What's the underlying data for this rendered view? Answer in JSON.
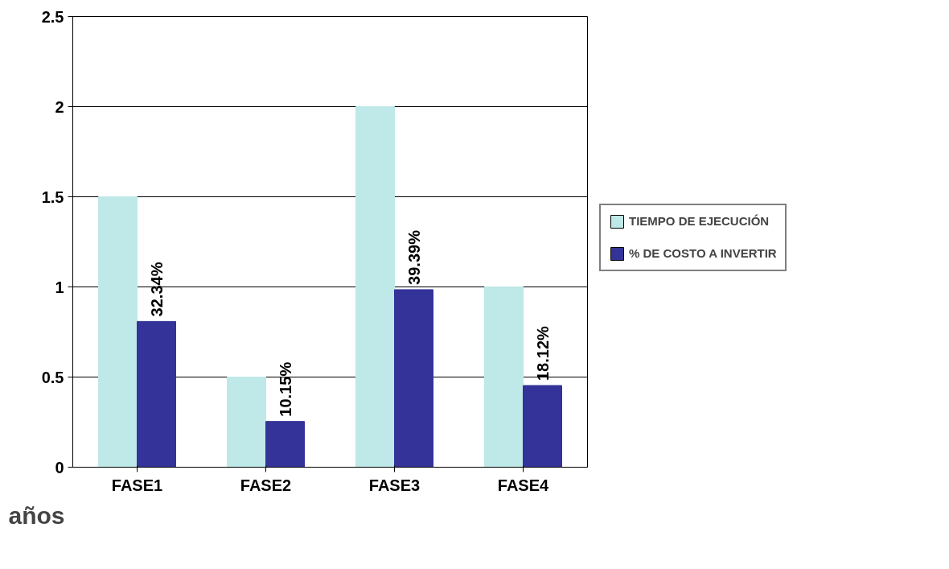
{
  "chart_data": {
    "type": "bar",
    "xlabel": "años",
    "categories": [
      "FASE1",
      "FASE2",
      "FASE3",
      "FASE4"
    ],
    "series": [
      {
        "name": "TIEMPO DE EJECUCIÓN",
        "color": "#bfe8e8",
        "values": [
          1.5,
          0.5,
          2,
          1
        ]
      },
      {
        "name": "% DE COSTO A INVERTIR",
        "color": "#333399",
        "axis": "y2",
        "values": [
          32.34,
          10.15,
          39.39,
          18.12
        ],
        "value_labels": [
          "32.34%",
          "10.15%",
          "39.39%",
          "18.12%"
        ]
      }
    ],
    "ylim": [
      0,
      2.5
    ],
    "y2lim": [
      0,
      100
    ],
    "yticks": [
      0,
      0.5,
      1,
      1.5,
      2,
      2.5
    ],
    "grid": "y",
    "legend": "right"
  }
}
